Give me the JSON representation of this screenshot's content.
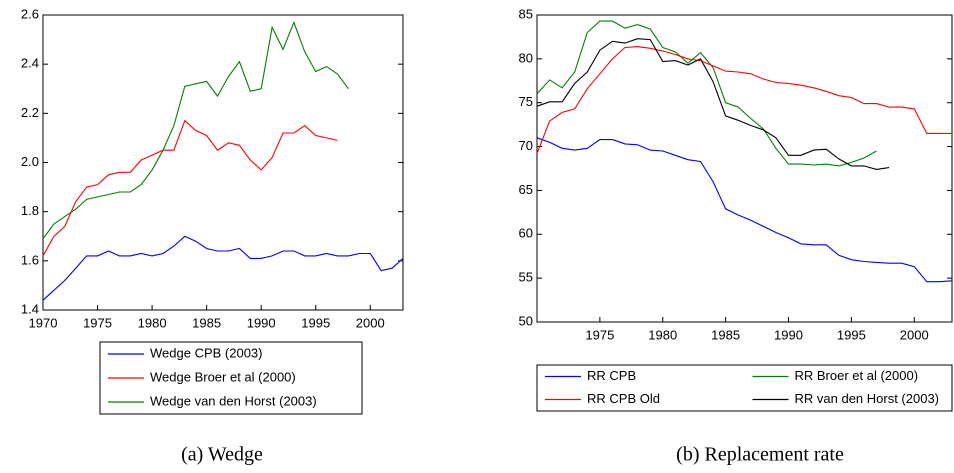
{
  "chart_data": [
    {
      "type": "line",
      "caption": "(a) Wedge",
      "x": [
        1970,
        1971,
        1972,
        1973,
        1974,
        1975,
        1976,
        1977,
        1978,
        1979,
        1980,
        1981,
        1982,
        1983,
        1984,
        1985,
        1986,
        1987,
        1988,
        1989,
        1990,
        1991,
        1992,
        1993,
        1994,
        1995,
        1996,
        1997,
        1998,
        1999,
        2000,
        2001,
        2002,
        2003
      ],
      "xlim": [
        1970,
        2003
      ],
      "xticks": [
        1970,
        1975,
        1980,
        1985,
        1990,
        1995,
        2000
      ],
      "ylim": [
        1.4,
        2.6
      ],
      "yticks": [
        1.4,
        1.6,
        1.8,
        {
          "value": 2,
          "label": "2.0"
        },
        2.2,
        2.4,
        2.6
      ],
      "series": [
        {
          "name": "Wedge CPB (2003)",
          "color": "#0000ff",
          "values": [
            1.44,
            1.48,
            1.52,
            1.57,
            1.62,
            1.62,
            1.64,
            1.62,
            1.62,
            1.63,
            1.62,
            1.63,
            1.66,
            1.7,
            1.68,
            1.65,
            1.64,
            1.64,
            1.65,
            1.61,
            1.61,
            1.62,
            1.64,
            1.64,
            1.62,
            1.62,
            1.63,
            1.62,
            1.62,
            1.63,
            1.63,
            1.56,
            1.57,
            1.61
          ]
        },
        {
          "name": "Wedge Broer et al (2000)",
          "color": "#ff0000",
          "values": [
            1.62,
            1.7,
            1.74,
            1.84,
            1.9,
            1.91,
            1.95,
            1.96,
            1.96,
            2.01,
            2.03,
            2.05,
            2.05,
            2.17,
            2.13,
            2.11,
            2.05,
            2.08,
            2.07,
            2.01,
            1.97,
            2.02,
            2.12,
            2.12,
            2.15,
            2.11,
            2.1,
            2.09,
            null,
            null,
            null,
            null,
            null,
            null
          ]
        },
        {
          "name": "Wedge van den Horst (2003)",
          "color": "#008000",
          "values": [
            1.69,
            1.75,
            1.78,
            1.81,
            1.85,
            1.86,
            1.87,
            1.88,
            1.88,
            1.91,
            1.97,
            2.05,
            2.15,
            2.31,
            2.32,
            2.33,
            2.27,
            2.35,
            2.41,
            2.29,
            2.3,
            2.55,
            2.46,
            2.57,
            2.45,
            2.37,
            2.39,
            2.36,
            2.3,
            null,
            null,
            null,
            null,
            null
          ]
        }
      ]
    },
    {
      "type": "line",
      "caption": "(b) Replacement rate",
      "x": [
        1970,
        1971,
        1972,
        1973,
        1974,
        1975,
        1976,
        1977,
        1978,
        1979,
        1980,
        1981,
        1982,
        1983,
        1984,
        1985,
        1986,
        1987,
        1988,
        1989,
        1990,
        1991,
        1992,
        1993,
        1994,
        1995,
        1996,
        1997,
        1998,
        1999,
        2000,
        2001,
        2002,
        2003
      ],
      "xlim": [
        1970,
        2003
      ],
      "xticks": [
        1975,
        1980,
        1985,
        1990,
        1995,
        2000
      ],
      "ylim": [
        50,
        85
      ],
      "yticks": [
        50,
        55,
        60,
        65,
        70,
        75,
        80,
        85
      ],
      "series": [
        {
          "name": "RR CPB",
          "color": "#0000ff",
          "values": [
            71,
            70.5,
            69.8,
            69.6,
            69.8,
            70.8,
            70.8,
            70.3,
            70.2,
            69.6,
            69.5,
            69,
            68.5,
            68.3,
            66,
            62.9,
            62.2,
            61.6,
            60.9,
            60.2,
            59.6,
            58.9,
            58.8,
            58.8,
            57.6,
            57.1,
            56.9,
            56.8,
            56.7,
            56.7,
            56.3,
            54.6,
            54.6,
            54.7
          ]
        },
        {
          "name": "RR Broer et al (2000)",
          "color": "#008000",
          "values": [
            76,
            77.6,
            76.7,
            78.5,
            83,
            84.3,
            84.3,
            83.5,
            83.9,
            83.4,
            81.3,
            80.8,
            79.5,
            80.7,
            79,
            75,
            74.5,
            73.2,
            72,
            69.8,
            68,
            68,
            67.9,
            68,
            67.8,
            68.2,
            68.7,
            69.5,
            null,
            null,
            null,
            null,
            null,
            null
          ]
        },
        {
          "name": "RR CPB Old",
          "color": "#ff0000",
          "values": [
            69.2,
            72.9,
            73.9,
            74.3,
            76.6,
            78.3,
            80,
            81.3,
            81.4,
            81.2,
            80.9,
            80.5,
            80,
            79.8,
            79.2,
            78.6,
            78.5,
            78.3,
            77.7,
            77.3,
            77.2,
            77,
            76.7,
            76.3,
            75.8,
            75.6,
            74.9,
            74.9,
            74.5,
            74.5,
            74.3,
            71.5,
            71.5,
            71.5
          ]
        },
        {
          "name": "RR van den Horst (2003)",
          "color": "#000000",
          "values": [
            74.6,
            75.1,
            75.1,
            77.2,
            78.5,
            81,
            82,
            81.8,
            82.3,
            82.2,
            79.7,
            79.8,
            79.3,
            80,
            77.4,
            73.5,
            73,
            72.4,
            71.9,
            71,
            69,
            69,
            69.6,
            69.7,
            68.6,
            67.8,
            67.8,
            67.4,
            67.6,
            null,
            null,
            null,
            null,
            null
          ]
        }
      ]
    }
  ]
}
